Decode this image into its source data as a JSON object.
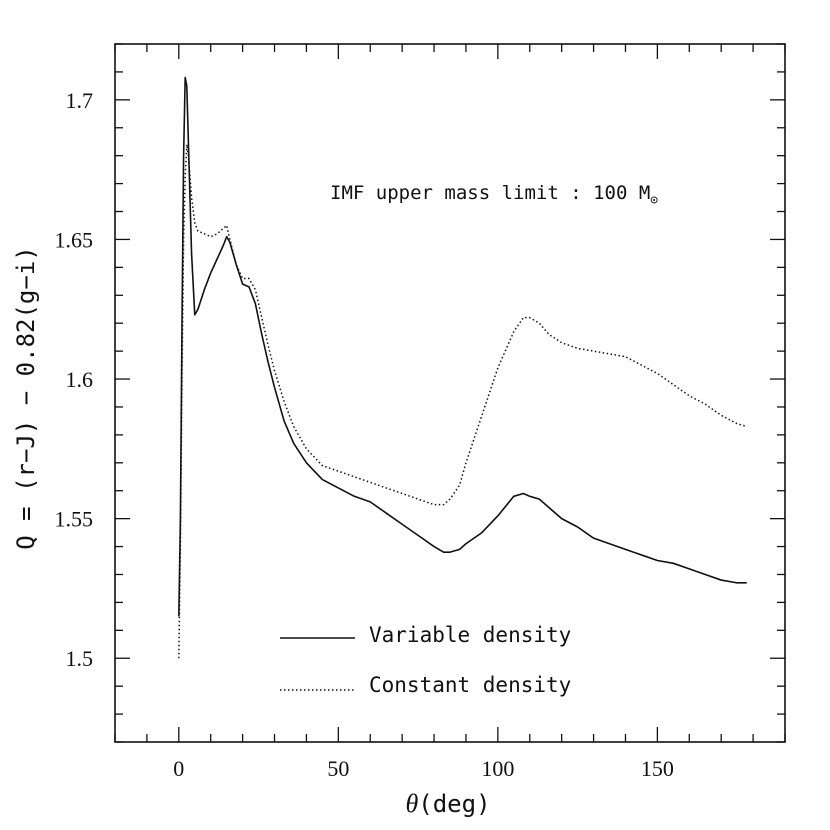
{
  "chart_data": {
    "type": "line",
    "title": "",
    "annotation": {
      "prefix": "IMF upper mass limit : 100 M",
      "symbol": "⊙"
    },
    "xlabel": {
      "symbol": "θ",
      "unit": "(deg)"
    },
    "ylabel": "Q = (r−J) − 0.82(g−i)",
    "xlim": [
      -20,
      190
    ],
    "ylim": [
      1.47,
      1.72
    ],
    "xticks": {
      "major": [
        0,
        50,
        100,
        150
      ],
      "minor_step": 10
    },
    "yticks": {
      "major": [
        1.5,
        1.55,
        1.6,
        1.65,
        1.7
      ],
      "minor_step": 0.01
    },
    "tick_labels_x": [
      "0",
      "50",
      "100",
      "150"
    ],
    "tick_labels_y": [
      "1.5",
      "1.55",
      "1.6",
      "1.65",
      "1.7"
    ],
    "legend": {
      "position": "bottom-center",
      "entries": [
        {
          "label": "Variable density",
          "style": "solid"
        },
        {
          "label": "Constant density",
          "style": "dotted"
        }
      ]
    },
    "series": [
      {
        "name": "Variable density",
        "style": "solid",
        "x": [
          0,
          0.5,
          1,
          1.5,
          2,
          2.5,
          3,
          4,
          5,
          6,
          8,
          10,
          12,
          14,
          15,
          16,
          18,
          20,
          22,
          24,
          26,
          28,
          30,
          33,
          36,
          40,
          45,
          50,
          55,
          60,
          65,
          70,
          75,
          80,
          83,
          85,
          88,
          90,
          95,
          100,
          105,
          108,
          110,
          113,
          116,
          120,
          125,
          130,
          135,
          140,
          145,
          150,
          155,
          160,
          165,
          170,
          175,
          178
        ],
        "y": [
          1.515,
          1.55,
          1.62,
          1.68,
          1.708,
          1.705,
          1.685,
          1.645,
          1.623,
          1.625,
          1.632,
          1.638,
          1.643,
          1.648,
          1.651,
          1.649,
          1.641,
          1.634,
          1.633,
          1.627,
          1.616,
          1.606,
          1.597,
          1.585,
          1.577,
          1.57,
          1.564,
          1.561,
          1.558,
          1.556,
          1.552,
          1.548,
          1.544,
          1.54,
          1.538,
          1.538,
          1.539,
          1.541,
          1.545,
          1.551,
          1.558,
          1.559,
          1.558,
          1.557,
          1.554,
          1.55,
          1.547,
          1.543,
          1.541,
          1.539,
          1.537,
          1.535,
          1.534,
          1.532,
          1.53,
          1.528,
          1.527,
          1.527
        ]
      },
      {
        "name": "Constant density",
        "style": "dotted",
        "x": [
          0,
          0.5,
          1,
          1.5,
          2,
          2.5,
          3,
          4,
          5,
          6,
          8,
          10,
          12,
          14,
          15,
          16,
          18,
          20,
          22,
          24,
          26,
          28,
          30,
          33,
          36,
          40,
          45,
          50,
          55,
          60,
          65,
          70,
          75,
          80,
          83,
          85,
          88,
          90,
          95,
          100,
          105,
          108,
          110,
          113,
          116,
          120,
          125,
          130,
          135,
          140,
          145,
          150,
          155,
          160,
          165,
          170,
          175,
          178
        ],
        "y": [
          1.5,
          1.54,
          1.6,
          1.65,
          1.672,
          1.684,
          1.68,
          1.665,
          1.656,
          1.653,
          1.652,
          1.651,
          1.652,
          1.654,
          1.655,
          1.65,
          1.641,
          1.636,
          1.636,
          1.632,
          1.622,
          1.612,
          1.603,
          1.592,
          1.583,
          1.575,
          1.569,
          1.567,
          1.565,
          1.563,
          1.561,
          1.559,
          1.557,
          1.555,
          1.555,
          1.557,
          1.562,
          1.57,
          1.587,
          1.604,
          1.617,
          1.622,
          1.622,
          1.62,
          1.616,
          1.613,
          1.611,
          1.61,
          1.609,
          1.608,
          1.605,
          1.602,
          1.598,
          1.594,
          1.591,
          1.587,
          1.584,
          1.583
        ]
      }
    ]
  }
}
